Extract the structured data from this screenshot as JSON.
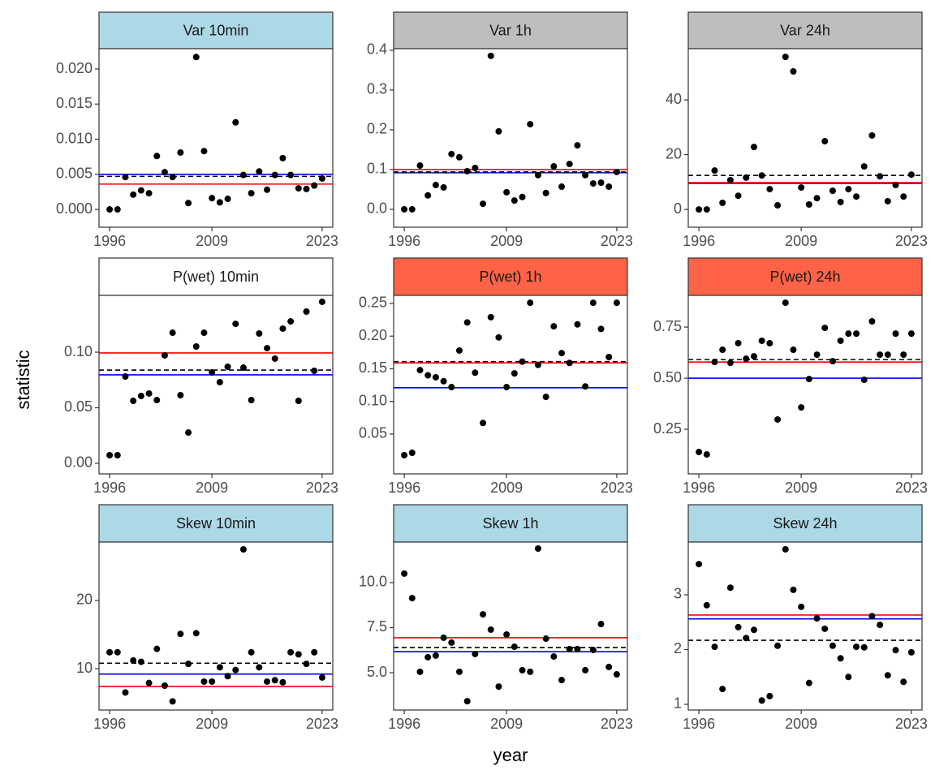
{
  "xlabel": "year",
  "ylabel": "statistic",
  "chart_data": [
    {
      "type": "scatter",
      "title": "Var 10min",
      "strip_color": "#add8e6",
      "point_color": "#000000",
      "x": [
        1996,
        1997,
        1998,
        1999,
        2000,
        2001,
        2002,
        2003,
        2004,
        2005,
        2006,
        2007,
        2008,
        2009,
        2010,
        2011,
        2012,
        2013,
        2014,
        2015,
        2016,
        2017,
        2018,
        2019,
        2020,
        2021,
        2022,
        2023
      ],
      "values": [
        0.0,
        0.0,
        0.0046,
        0.0021,
        0.0027,
        0.0023,
        0.0076,
        0.0053,
        0.0046,
        0.0081,
        0.0009,
        0.0217,
        0.0083,
        0.0016,
        0.001,
        0.0015,
        0.0124,
        0.0049,
        0.0023,
        0.0054,
        0.0028,
        0.0049,
        0.0073,
        0.0049,
        0.003,
        0.0029,
        0.0034,
        0.0044
      ],
      "lines": [
        {
          "value": 0.005,
          "color": "#0000ff",
          "style": "solid"
        },
        {
          "value": 0.0036,
          "color": "#ff0000",
          "style": "solid"
        },
        {
          "value": 0.0047,
          "color": "#000000",
          "style": "dashed"
        }
      ],
      "xlim": [
        1994.65,
        2024.35
      ],
      "xticks": [
        1996,
        2009,
        2023
      ],
      "ylim": [
        -0.00254,
        0.02289
      ],
      "yticks": [
        {
          "value": 0,
          "label": "0.000"
        },
        0.005,
        {
          "value": 0.01,
          "label": "0.010"
        },
        0.015,
        {
          "value": 0.02,
          "label": "0.020"
        }
      ]
    },
    {
      "type": "scatter",
      "title": "Var 1h",
      "strip_color": "#bebebe",
      "point_color": "#000000",
      "x": [
        1996,
        1997,
        1998,
        1999,
        2000,
        2001,
        2002,
        2003,
        2004,
        2005,
        2006,
        2007,
        2008,
        2009,
        2010,
        2011,
        2012,
        2013,
        2014,
        2015,
        2016,
        2017,
        2018,
        2019,
        2020,
        2021,
        2022,
        2023
      ],
      "values": [
        0.0,
        0.0,
        0.11,
        0.035,
        0.061,
        0.055,
        0.139,
        0.131,
        0.096,
        0.104,
        0.014,
        0.386,
        0.196,
        0.043,
        0.022,
        0.031,
        0.214,
        0.086,
        0.041,
        0.108,
        0.057,
        0.114,
        0.161,
        0.086,
        0.065,
        0.067,
        0.057,
        0.094
      ],
      "lines": [
        {
          "value": 0.092,
          "color": "#0000ff",
          "style": "solid"
        },
        {
          "value": 0.1,
          "color": "#ff0000",
          "style": "solid"
        },
        {
          "value": 0.094,
          "color": "#000000",
          "style": "dashed"
        }
      ],
      "xlim": [
        1994.65,
        2024.35
      ],
      "xticks": [
        1996,
        2009,
        2023
      ],
      "ylim": [
        -0.045,
        0.404
      ],
      "yticks": [
        {
          "value": 0,
          "label": "0.0"
        },
        0.1,
        0.2,
        0.3,
        0.4
      ]
    },
    {
      "type": "scatter",
      "title": "Var 24h",
      "strip_color": "#bebebe",
      "point_color": "#000000",
      "x": [
        1996,
        1997,
        1998,
        1999,
        2000,
        2001,
        2002,
        2003,
        2004,
        2005,
        2006,
        2007,
        2008,
        2009,
        2010,
        2011,
        2012,
        2013,
        2014,
        2015,
        2016,
        2017,
        2018,
        2019,
        2020,
        2021,
        2022,
        2023
      ],
      "values": [
        0,
        0,
        14.2,
        2.4,
        10.7,
        5.0,
        11.6,
        22.8,
        12.4,
        7.4,
        1.5,
        55.7,
        50.4,
        8.0,
        1.8,
        4.1,
        24.9,
        6.8,
        2.7,
        7.4,
        4.7,
        15.7,
        27.0,
        12.1,
        3.0,
        8.9,
        4.7,
        12.7
      ],
      "lines": [
        {
          "value": 9.5,
          "color": "#0000ff",
          "style": "solid"
        },
        {
          "value": 9.8,
          "color": "#ff0000",
          "style": "solid"
        },
        {
          "value": 12.4,
          "color": "#000000",
          "style": "dashed"
        }
      ],
      "xlim": [
        1994.65,
        2024.35
      ],
      "xticks": [
        1996,
        2009,
        2023
      ],
      "ylim": [
        -6.5,
        58.7
      ],
      "yticks": [
        0,
        20,
        40
      ]
    },
    {
      "type": "scatter",
      "title": "P(wet) 10min",
      "strip_color": "#ffffff",
      "point_color": "#000000",
      "x": [
        1996,
        1997,
        1998,
        1999,
        2000,
        2001,
        2002,
        2003,
        2004,
        2005,
        2006,
        2007,
        2008,
        2009,
        2010,
        2011,
        2012,
        2013,
        2014,
        2015,
        2016,
        2017,
        2018,
        2019,
        2020,
        2021,
        2022,
        2023
      ],
      "values": [
        0.0073,
        0.0073,
        0.0781,
        0.0562,
        0.0606,
        0.0628,
        0.0569,
        0.0971,
        0.1175,
        0.0613,
        0.0277,
        0.1051,
        0.1175,
        0.0818,
        0.073,
        0.0869,
        0.1255,
        0.0861,
        0.0569,
        0.1168,
        0.1036,
        0.0942,
        0.1212,
        0.1277,
        0.0562,
        0.1365,
        0.0832,
        0.1453
      ],
      "lines": [
        {
          "value": 0.0796,
          "color": "#0000ff",
          "style": "solid"
        },
        {
          "value": 0.0993,
          "color": "#ff0000",
          "style": "solid"
        },
        {
          "value": 0.0839,
          "color": "#000000",
          "style": "dashed"
        }
      ],
      "xlim": [
        1994.65,
        2024.35
      ],
      "xticks": [
        1996,
        2009,
        2023
      ],
      "ylim": [
        -0.0095,
        0.1511
      ],
      "yticks": [
        {
          "value": 0,
          "label": "0.00"
        },
        0.05,
        {
          "value": 0.1,
          "label": "0.10"
        }
      ]
    },
    {
      "type": "scatter",
      "title": "P(wet) 1h",
      "strip_color": "#ff6347",
      "point_color": "#000000",
      "x": [
        1996,
        1997,
        1998,
        1999,
        2000,
        2001,
        2002,
        2003,
        2004,
        2005,
        2006,
        2007,
        2008,
        2009,
        2010,
        2011,
        2012,
        2013,
        2014,
        2015,
        2016,
        2017,
        2018,
        2019,
        2020,
        2021,
        2022,
        2023
      ],
      "values": [
        0.0177,
        0.0214,
        0.148,
        0.14,
        0.137,
        0.131,
        0.122,
        0.178,
        0.221,
        0.144,
        0.067,
        0.229,
        0.198,
        0.122,
        0.143,
        0.161,
        0.251,
        0.156,
        0.107,
        0.215,
        0.174,
        0.159,
        0.218,
        0.123,
        0.251,
        0.211,
        0.168,
        0.251
      ],
      "lines": [
        {
          "value": 0.121,
          "color": "#0000ff",
          "style": "solid"
        },
        {
          "value": 0.159,
          "color": "#ff0000",
          "style": "solid"
        },
        {
          "value": 0.161,
          "color": "#000000",
          "style": "dashed"
        }
      ],
      "xlim": [
        1994.65,
        2024.35
      ],
      "xticks": [
        1996,
        2009,
        2023
      ],
      "ylim": [
        -0.0109,
        0.2624
      ],
      "yticks": [
        0.05,
        {
          "value": 0.1,
          "label": "0.10"
        },
        0.15,
        {
          "value": 0.2,
          "label": "0.20"
        },
        0.25
      ]
    },
    {
      "type": "scatter",
      "title": "P(wet) 24h",
      "strip_color": "#ff6347",
      "point_color": "#000000",
      "x": [
        1996,
        1997,
        1998,
        1999,
        2000,
        2001,
        2002,
        2003,
        2004,
        2005,
        2006,
        2007,
        2008,
        2009,
        2010,
        2011,
        2012,
        2013,
        2014,
        2015,
        2016,
        2017,
        2018,
        2019,
        2020,
        2021,
        2022,
        2023
      ],
      "values": [
        0.139,
        0.127,
        0.579,
        0.639,
        0.575,
        0.671,
        0.595,
        0.607,
        0.683,
        0.671,
        0.298,
        0.869,
        0.639,
        0.357,
        0.496,
        0.615,
        0.746,
        0.583,
        0.683,
        0.718,
        0.718,
        0.492,
        0.778,
        0.615,
        0.615,
        0.718,
        0.615,
        0.718
      ],
      "lines": [
        {
          "value": 0.5,
          "color": "#0000ff",
          "style": "solid"
        },
        {
          "value": 0.579,
          "color": "#ff0000",
          "style": "solid"
        },
        {
          "value": 0.591,
          "color": "#000000",
          "style": "dashed"
        }
      ],
      "xlim": [
        1994.65,
        2024.35
      ],
      "xticks": [
        1996,
        2009,
        2023
      ],
      "ylim": [
        0.032,
        0.905
      ],
      "yticks": [
        0.25,
        {
          "value": 0.5,
          "label": "0.50"
        },
        0.75
      ]
    },
    {
      "type": "scatter",
      "title": "Skew 10min",
      "strip_color": "#add8e6",
      "point_color": "#000000",
      "x": [
        1996,
        1997,
        1998,
        1999,
        2000,
        2001,
        2002,
        2003,
        2004,
        2005,
        2006,
        2007,
        2008,
        2009,
        2010,
        2011,
        2012,
        2013,
        2014,
        2015,
        2016,
        2017,
        2018,
        2019,
        2020,
        2021,
        2022,
        2023
      ],
      "values": [
        12.4,
        12.4,
        6.5,
        11.2,
        11.0,
        7.9,
        12.9,
        7.5,
        5.2,
        15.1,
        10.7,
        15.2,
        8.1,
        8.1,
        10.2,
        8.9,
        9.8,
        27.5,
        12.4,
        10.2,
        8.1,
        8.3,
        8.0,
        12.4,
        12.1,
        10.7,
        12.4,
        8.7
      ],
      "lines": [
        {
          "value": 9.2,
          "color": "#0000ff",
          "style": "solid"
        },
        {
          "value": 7.4,
          "color": "#ff0000",
          "style": "solid"
        },
        {
          "value": 10.8,
          "color": "#000000",
          "style": "dashed"
        }
      ],
      "xlim": [
        1994.65,
        2024.35
      ],
      "xticks": [
        1996,
        2009,
        2023
      ],
      "ylim": [
        3.93,
        28.57
      ],
      "yticks": [
        10,
        20
      ]
    },
    {
      "type": "scatter",
      "title": "Skew 1h",
      "strip_color": "#add8e6",
      "point_color": "#000000",
      "x": [
        1996,
        1997,
        1998,
        1999,
        2000,
        2001,
        2002,
        2003,
        2004,
        2005,
        2006,
        2007,
        2008,
        2009,
        2010,
        2011,
        2012,
        2013,
        2014,
        2015,
        2016,
        2017,
        2018,
        2019,
        2020,
        2021,
        2022,
        2023
      ],
      "values": [
        10.5,
        9.14,
        5.05,
        5.86,
        5.95,
        6.94,
        6.67,
        5.05,
        3.42,
        6.04,
        8.24,
        7.39,
        4.23,
        7.12,
        6.44,
        5.14,
        5.05,
        11.89,
        6.89,
        5.9,
        4.59,
        6.31,
        6.31,
        5.14,
        6.26,
        7.7,
        5.32,
        4.91
      ],
      "lines": [
        {
          "value": 6.17,
          "color": "#0000ff",
          "style": "solid"
        },
        {
          "value": 6.94,
          "color": "#ff0000",
          "style": "solid"
        },
        {
          "value": 6.4,
          "color": "#000000",
          "style": "dashed"
        }
      ],
      "xlim": [
        1994.65,
        2024.35
      ],
      "xticks": [
        1996,
        2009,
        2023
      ],
      "ylim": [
        2.93,
        12.25
      ],
      "yticks": [
        {
          "value": 5,
          "label": "5.0"
        },
        7.5,
        {
          "value": 10,
          "label": "10.0"
        }
      ]
    },
    {
      "type": "scatter",
      "title": "Skew 24h",
      "strip_color": "#add8e6",
      "point_color": "#000000",
      "x": [
        1996,
        1997,
        1998,
        1999,
        2000,
        2001,
        2002,
        2003,
        2004,
        2005,
        2006,
        2007,
        2008,
        2009,
        2010,
        2011,
        2012,
        2013,
        2014,
        2015,
        2016,
        2017,
        2018,
        2019,
        2020,
        2021,
        2022,
        2023
      ],
      "values": [
        3.56,
        2.81,
        2.05,
        1.28,
        3.13,
        2.41,
        2.21,
        2.36,
        1.07,
        1.15,
        2.07,
        3.83,
        3.09,
        2.78,
        1.39,
        2.57,
        2.38,
        2.07,
        1.84,
        1.5,
        2.05,
        2.04,
        2.61,
        2.45,
        1.53,
        1.99,
        1.41,
        1.95
      ],
      "lines": [
        {
          "value": 2.56,
          "color": "#0000ff",
          "style": "solid"
        },
        {
          "value": 2.63,
          "color": "#ff0000",
          "style": "solid"
        },
        {
          "value": 2.17,
          "color": "#000000",
          "style": "dashed"
        }
      ],
      "xlim": [
        1994.65,
        2024.35
      ],
      "xticks": [
        1996,
        2009,
        2023
      ],
      "ylim": [
        0.896,
        3.963
      ],
      "yticks": [
        1,
        2,
        3
      ]
    }
  ]
}
